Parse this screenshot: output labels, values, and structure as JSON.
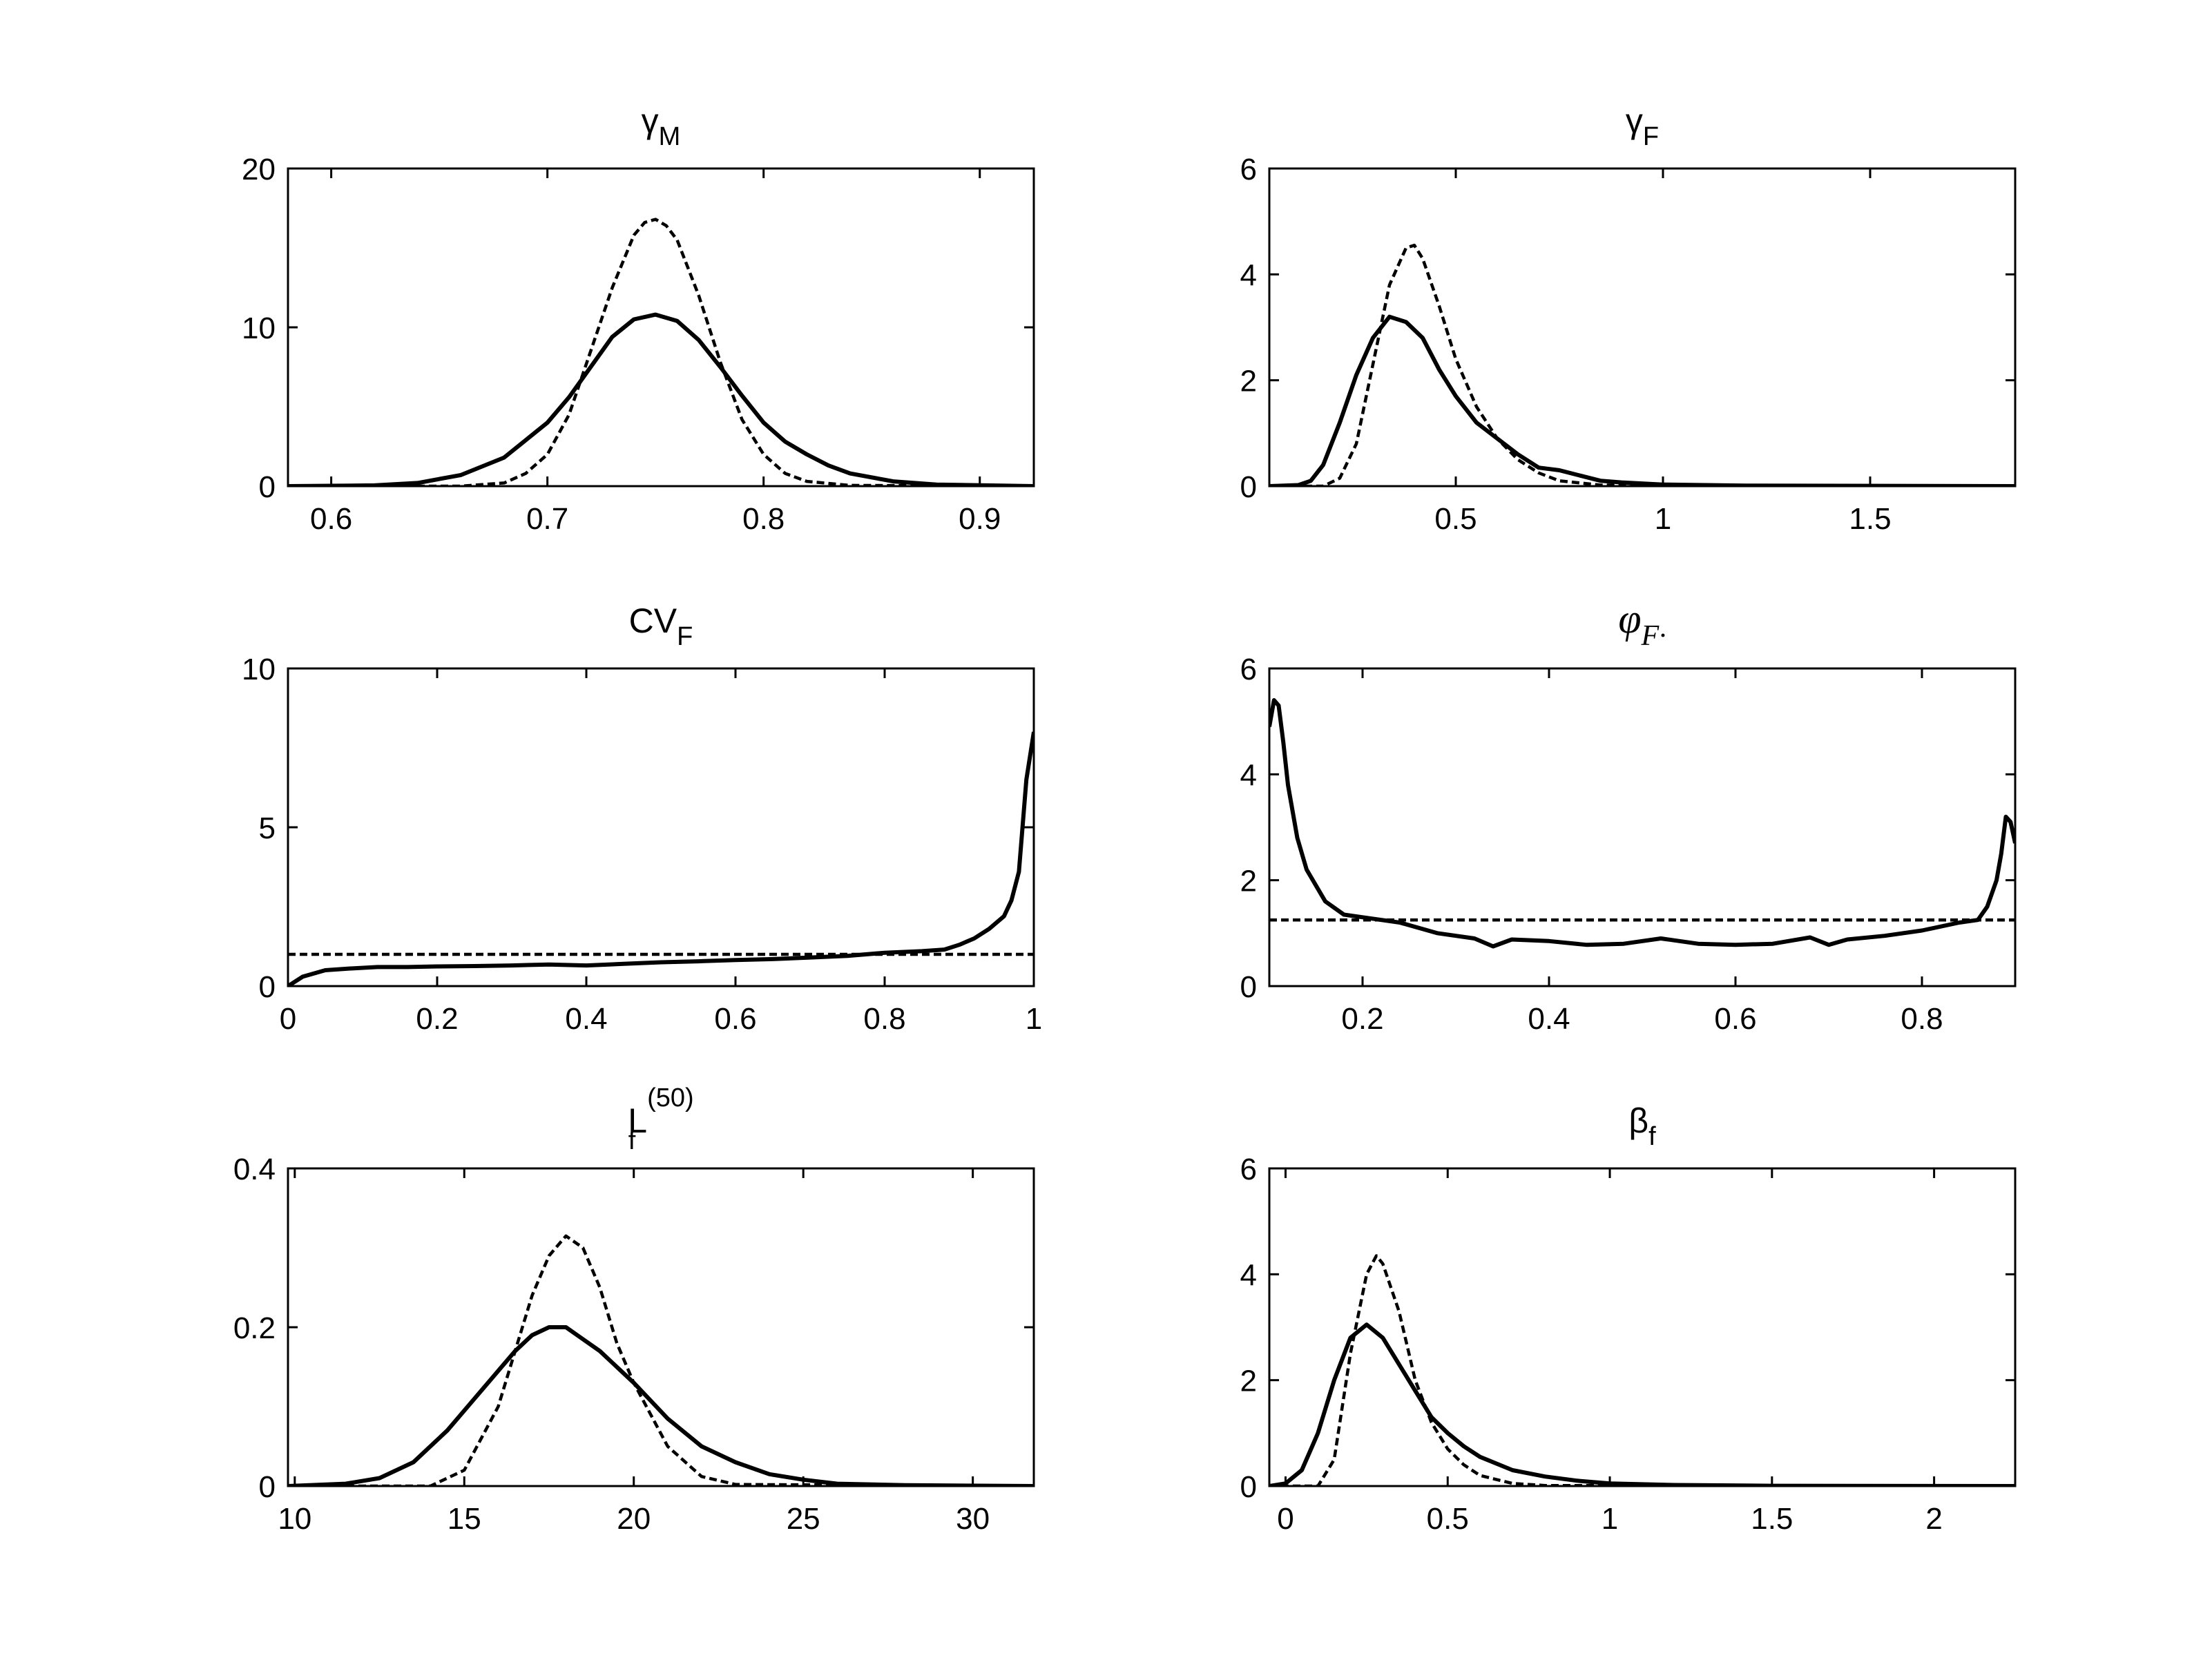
{
  "chart_data": [
    {
      "type": "line",
      "title": {
        "main": "γ",
        "sub": "M",
        "sup": ""
      },
      "xlim": [
        0.58,
        0.925
      ],
      "ylim": [
        0,
        20
      ],
      "xticks": [
        0.6,
        0.7,
        0.8,
        0.9
      ],
      "xtick_labels": [
        "0.6",
        "0.7",
        "0.8",
        "0.9"
      ],
      "yticks": [
        0,
        10,
        20
      ],
      "ytick_labels": [
        "0",
        "10",
        "20"
      ],
      "grid": false,
      "series": [
        {
          "style": "solid",
          "x": [
            0.58,
            0.62,
            0.64,
            0.66,
            0.68,
            0.7,
            0.71,
            0.72,
            0.73,
            0.74,
            0.75,
            0.76,
            0.77,
            0.78,
            0.79,
            0.8,
            0.81,
            0.82,
            0.83,
            0.84,
            0.86,
            0.88,
            0.925
          ],
          "y": [
            0,
            0.05,
            0.2,
            0.7,
            1.8,
            4.0,
            5.6,
            7.5,
            9.4,
            10.5,
            10.8,
            10.4,
            9.2,
            7.5,
            5.7,
            4.0,
            2.8,
            2.0,
            1.3,
            0.8,
            0.3,
            0.1,
            0
          ]
        },
        {
          "style": "dashed",
          "x": [
            0.58,
            0.66,
            0.68,
            0.69,
            0.7,
            0.71,
            0.72,
            0.73,
            0.74,
            0.745,
            0.75,
            0.755,
            0.76,
            0.77,
            0.78,
            0.79,
            0.8,
            0.81,
            0.82,
            0.84,
            0.925
          ],
          "y": [
            0,
            0,
            0.2,
            0.8,
            2.0,
            4.5,
            8.5,
            12.5,
            15.8,
            16.6,
            16.8,
            16.4,
            15.5,
            12.0,
            7.8,
            4.2,
            2.0,
            0.8,
            0.3,
            0.05,
            0
          ]
        }
      ]
    },
    {
      "type": "line",
      "title": {
        "main": "γ",
        "sub": "F",
        "sup": ""
      },
      "xlim": [
        0.05,
        1.85
      ],
      "ylim": [
        0,
        6
      ],
      "xticks": [
        0.5,
        1,
        1.5
      ],
      "xtick_labels": [
        "0.5",
        "1",
        "1.5"
      ],
      "yticks": [
        0,
        2,
        4,
        6
      ],
      "ytick_labels": [
        "0",
        "2",
        "4",
        "6"
      ],
      "grid": false,
      "series": [
        {
          "style": "solid",
          "x": [
            0.05,
            0.12,
            0.15,
            0.18,
            0.22,
            0.26,
            0.3,
            0.34,
            0.38,
            0.42,
            0.46,
            0.5,
            0.55,
            0.6,
            0.65,
            0.7,
            0.75,
            0.8,
            0.85,
            0.9,
            1.0,
            1.2,
            1.85
          ],
          "y": [
            0,
            0.02,
            0.1,
            0.4,
            1.2,
            2.1,
            2.8,
            3.2,
            3.1,
            2.8,
            2.2,
            1.7,
            1.2,
            0.9,
            0.6,
            0.35,
            0.3,
            0.2,
            0.1,
            0.07,
            0.03,
            0.01,
            0
          ]
        },
        {
          "style": "dashed",
          "x": [
            0.05,
            0.18,
            0.22,
            0.26,
            0.3,
            0.34,
            0.38,
            0.4,
            0.42,
            0.46,
            0.5,
            0.55,
            0.6,
            0.65,
            0.7,
            0.75,
            0.85,
            1.85
          ],
          "y": [
            0,
            0,
            0.15,
            0.8,
            2.3,
            3.8,
            4.5,
            4.55,
            4.3,
            3.4,
            2.4,
            1.5,
            0.9,
            0.5,
            0.25,
            0.1,
            0.02,
            0
          ]
        }
      ]
    },
    {
      "type": "line",
      "title": {
        "main": "CV",
        "sub": "F",
        "sup": ""
      },
      "xlim": [
        0,
        1
      ],
      "ylim": [
        0,
        10
      ],
      "xticks": [
        0,
        0.2,
        0.4,
        0.6,
        0.8,
        1
      ],
      "xtick_labels": [
        "0",
        "0.2",
        "0.4",
        "0.6",
        "0.8",
        "1"
      ],
      "yticks": [
        0,
        5,
        10
      ],
      "ytick_labels": [
        "0",
        "5",
        "10"
      ],
      "grid": false,
      "series": [
        {
          "style": "solid",
          "x": [
            0,
            0.02,
            0.05,
            0.08,
            0.12,
            0.16,
            0.2,
            0.25,
            0.3,
            0.35,
            0.4,
            0.45,
            0.5,
            0.55,
            0.6,
            0.65,
            0.7,
            0.75,
            0.8,
            0.85,
            0.88,
            0.9,
            0.92,
            0.94,
            0.96,
            0.97,
            0.98,
            0.99,
            1.0
          ],
          "y": [
            0,
            0.3,
            0.5,
            0.55,
            0.6,
            0.6,
            0.62,
            0.63,
            0.65,
            0.68,
            0.65,
            0.7,
            0.75,
            0.78,
            0.82,
            0.85,
            0.9,
            0.95,
            1.05,
            1.1,
            1.15,
            1.3,
            1.5,
            1.8,
            2.2,
            2.7,
            3.6,
            6.5,
            8.0
          ]
        },
        {
          "style": "dashed",
          "x": [
            0,
            1
          ],
          "y": [
            1.0,
            1.0
          ]
        }
      ]
    },
    {
      "type": "line",
      "title": {
        "main": "φ",
        "sub": "F·",
        "sup": "",
        "italic": true
      },
      "xlim": [
        0.1,
        0.9
      ],
      "ylim": [
        0,
        6
      ],
      "xticks": [
        0.2,
        0.4,
        0.6,
        0.8
      ],
      "xtick_labels": [
        "0.2",
        "0.4",
        "0.6",
        "0.8"
      ],
      "yticks": [
        0,
        2,
        4,
        6
      ],
      "ytick_labels": [
        "0",
        "2",
        "4",
        "6"
      ],
      "grid": false,
      "series": [
        {
          "style": "solid",
          "x": [
            0.1,
            0.105,
            0.11,
            0.115,
            0.12,
            0.13,
            0.14,
            0.16,
            0.18,
            0.2,
            0.24,
            0.28,
            0.32,
            0.34,
            0.36,
            0.4,
            0.44,
            0.48,
            0.52,
            0.56,
            0.6,
            0.64,
            0.68,
            0.7,
            0.72,
            0.76,
            0.8,
            0.84,
            0.86,
            0.87,
            0.88,
            0.885,
            0.89,
            0.895,
            0.9
          ],
          "y": [
            4.9,
            5.4,
            5.3,
            4.6,
            3.8,
            2.8,
            2.2,
            1.6,
            1.35,
            1.3,
            1.2,
            1.0,
            0.9,
            0.75,
            0.88,
            0.85,
            0.78,
            0.8,
            0.9,
            0.8,
            0.78,
            0.8,
            0.92,
            0.78,
            0.88,
            0.95,
            1.05,
            1.2,
            1.25,
            1.5,
            2.0,
            2.5,
            3.2,
            3.1,
            2.7
          ]
        },
        {
          "style": "dashed",
          "x": [
            0.1,
            0.9
          ],
          "y": [
            1.25,
            1.25
          ]
        }
      ]
    },
    {
      "type": "line",
      "title": {
        "main": "L",
        "sub": "f",
        "sup": "(50)"
      },
      "xlim": [
        9.8,
        31.8
      ],
      "ylim": [
        0,
        0.4
      ],
      "xticks": [
        10,
        15,
        20,
        25,
        30
      ],
      "xtick_labels": [
        "10",
        "15",
        "20",
        "25",
        "30"
      ],
      "yticks": [
        0,
        0.2,
        0.4
      ],
      "ytick_labels": [
        "0",
        "0.2",
        "0.4"
      ],
      "grid": false,
      "series": [
        {
          "style": "solid",
          "x": [
            9.8,
            11.5,
            12.5,
            13.5,
            14.5,
            15.5,
            16.5,
            17.0,
            17.5,
            18.0,
            18.5,
            19.0,
            20.0,
            21.0,
            22.0,
            23.0,
            24.0,
            25.0,
            26.0,
            28.0,
            31.8
          ],
          "y": [
            0,
            0.003,
            0.01,
            0.03,
            0.07,
            0.12,
            0.17,
            0.19,
            0.2,
            0.2,
            0.185,
            0.17,
            0.13,
            0.085,
            0.05,
            0.03,
            0.015,
            0.008,
            0.003,
            0.001,
            0
          ]
        },
        {
          "style": "dashed",
          "x": [
            9.8,
            14.0,
            15.0,
            16.0,
            16.5,
            17.0,
            17.5,
            18.0,
            18.5,
            19.0,
            19.5,
            20.0,
            21.0,
            22.0,
            23.0,
            31.8
          ],
          "y": [
            0,
            0,
            0.02,
            0.1,
            0.17,
            0.24,
            0.29,
            0.315,
            0.3,
            0.25,
            0.18,
            0.13,
            0.05,
            0.012,
            0.002,
            0
          ]
        }
      ]
    },
    {
      "type": "line",
      "title": {
        "main": "β",
        "sub": "f",
        "sup": ""
      },
      "xlim": [
        -0.05,
        2.25
      ],
      "ylim": [
        0,
        6
      ],
      "xticks": [
        0,
        0.5,
        1,
        1.5,
        2
      ],
      "xtick_labels": [
        "0",
        "0.5",
        "1",
        "1.5",
        "2"
      ],
      "yticks": [
        0,
        2,
        4,
        6
      ],
      "ytick_labels": [
        "0",
        "2",
        "4",
        "6"
      ],
      "grid": false,
      "series": [
        {
          "style": "solid",
          "x": [
            -0.05,
            0.0,
            0.05,
            0.1,
            0.15,
            0.2,
            0.25,
            0.3,
            0.35,
            0.4,
            0.45,
            0.5,
            0.55,
            0.6,
            0.7,
            0.8,
            0.9,
            1.0,
            1.2,
            1.5,
            2.25
          ],
          "y": [
            0,
            0.05,
            0.3,
            1.0,
            2.0,
            2.8,
            3.05,
            2.8,
            2.3,
            1.8,
            1.3,
            1.0,
            0.75,
            0.55,
            0.3,
            0.18,
            0.1,
            0.05,
            0.02,
            0.005,
            0
          ]
        },
        {
          "style": "dashed",
          "x": [
            -0.05,
            0.1,
            0.15,
            0.2,
            0.25,
            0.28,
            0.3,
            0.35,
            0.4,
            0.45,
            0.5,
            0.55,
            0.6,
            0.7,
            0.8,
            2.25
          ],
          "y": [
            0,
            0,
            0.5,
            2.5,
            4.0,
            4.35,
            4.2,
            3.3,
            2.0,
            1.2,
            0.7,
            0.4,
            0.2,
            0.05,
            0.01,
            0
          ]
        }
      ]
    }
  ]
}
